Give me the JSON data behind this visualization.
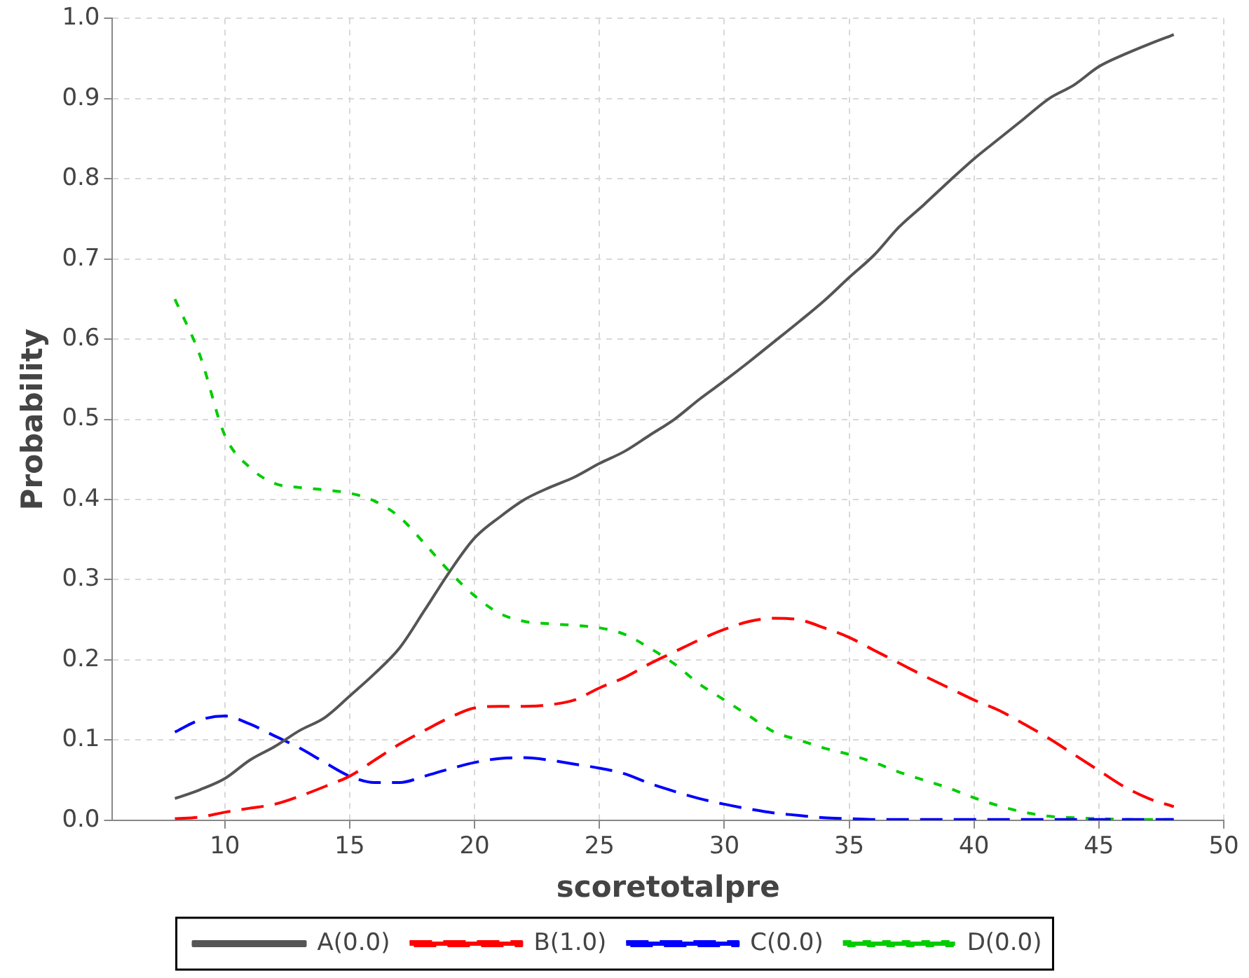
{
  "chart_data": {
    "type": "line",
    "xlabel": "scoretotalpre",
    "ylabel": "Probability",
    "x": [
      8,
      9,
      10,
      11,
      12,
      13,
      14,
      15,
      16,
      17,
      18,
      19,
      20,
      21,
      22,
      23,
      24,
      25,
      26,
      27,
      28,
      29,
      30,
      31,
      32,
      33,
      34,
      35,
      36,
      37,
      38,
      39,
      40,
      41,
      42,
      43,
      44,
      45,
      46,
      47,
      48
    ],
    "xlim": [
      5.5,
      50
    ],
    "xticks": [
      10,
      15,
      20,
      25,
      30,
      35,
      40,
      45,
      50
    ],
    "ylim": [
      0,
      1
    ],
    "yticks": [
      {
        "value": 0,
        "label": "0.0"
      },
      {
        "value": 0.1,
        "label": "0.1"
      },
      {
        "value": 0.2,
        "label": "0.2"
      },
      {
        "value": 0.3,
        "label": "0.3"
      },
      {
        "value": 0.4,
        "label": "0.4"
      },
      {
        "value": 0.5,
        "label": "0.5"
      },
      {
        "value": 0.6,
        "label": "0.6"
      },
      {
        "value": 0.7,
        "label": "0.7"
      },
      {
        "value": 0.8,
        "label": "0.8"
      },
      {
        "value": 0.9,
        "label": "0.9"
      },
      {
        "value": 1,
        "label": "1.0"
      }
    ],
    "grid": true,
    "legend": "bottom",
    "marker": "none",
    "series": [
      {
        "name": "A(0.0)",
        "color": "#555555",
        "line_style": "solid",
        "values": [
          0.027,
          0.038,
          0.052,
          0.075,
          0.092,
          0.112,
          0.128,
          0.155,
          0.183,
          0.215,
          0.262,
          0.31,
          0.352,
          0.378,
          0.4,
          0.415,
          0.428,
          0.445,
          0.46,
          0.48,
          0.5,
          0.525,
          0.548,
          0.572,
          0.597,
          0.622,
          0.648,
          0.677,
          0.705,
          0.74,
          0.768,
          0.797,
          0.825,
          0.85,
          0.875,
          0.9,
          0.917,
          0.94,
          0.955,
          0.968,
          0.98
        ]
      },
      {
        "name": "B(1.0)",
        "color": "#ff0000",
        "line_style": "dashed",
        "values": [
          0.002,
          0.004,
          0.01,
          0.015,
          0.02,
          0.03,
          0.042,
          0.055,
          0.075,
          0.095,
          0.112,
          0.128,
          0.14,
          0.142,
          0.142,
          0.144,
          0.15,
          0.165,
          0.178,
          0.195,
          0.21,
          0.225,
          0.238,
          0.248,
          0.252,
          0.25,
          0.24,
          0.228,
          0.212,
          0.196,
          0.18,
          0.165,
          0.15,
          0.137,
          0.12,
          0.102,
          0.082,
          0.062,
          0.042,
          0.027,
          0.017
        ]
      },
      {
        "name": "C(0.0)",
        "color": "#0000ff",
        "line_style": "dashed",
        "values": [
          0.11,
          0.125,
          0.13,
          0.12,
          0.105,
          0.09,
          0.072,
          0.055,
          0.047,
          0.047,
          0.055,
          0.064,
          0.072,
          0.077,
          0.078,
          0.075,
          0.07,
          0.065,
          0.058,
          0.046,
          0.036,
          0.027,
          0.02,
          0.014,
          0.009,
          0.006,
          0.003,
          0.002,
          0.001,
          0.001,
          0.001,
          0.001,
          0.001,
          0.001,
          0.001,
          0.001,
          0.001,
          0.001,
          0.001,
          0.001,
          0.001
        ]
      },
      {
        "name": "D(0.0)",
        "color": "#00cc00",
        "line_style": "dotted",
        "values": [
          0.65,
          0.58,
          0.48,
          0.44,
          0.42,
          0.415,
          0.412,
          0.408,
          0.398,
          0.378,
          0.345,
          0.31,
          0.28,
          0.258,
          0.248,
          0.245,
          0.243,
          0.24,
          0.232,
          0.215,
          0.195,
          0.17,
          0.15,
          0.13,
          0.11,
          0.1,
          0.09,
          0.082,
          0.072,
          0.06,
          0.05,
          0.04,
          0.028,
          0.018,
          0.01,
          0.005,
          0.003,
          0.002,
          0.001,
          0.001,
          0.001
        ]
      }
    ]
  }
}
